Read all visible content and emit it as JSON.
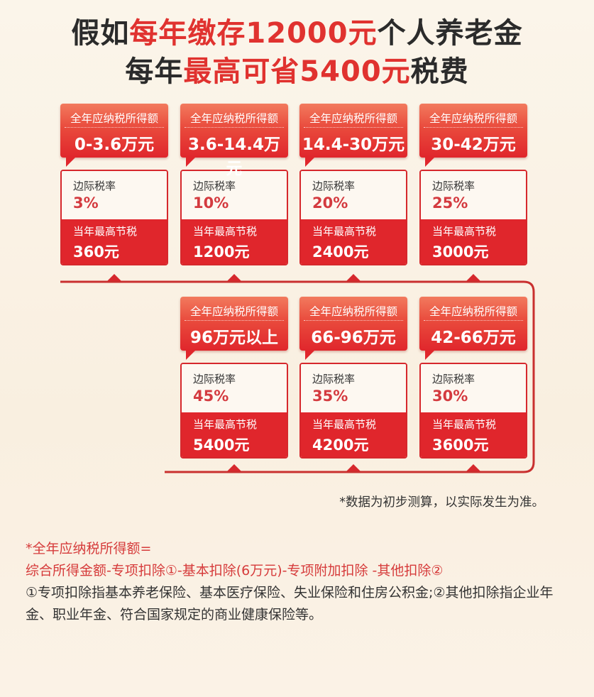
{
  "title": {
    "line1": [
      {
        "t": "假如",
        "hl": false
      },
      {
        "t": "每年缴存12000元",
        "hl": true
      },
      {
        "t": "个人养老金",
        "hl": false
      }
    ],
    "line2": [
      {
        "t": "每年",
        "hl": false
      },
      {
        "t": "最高可省5400元",
        "hl": true
      },
      {
        "t": "税费",
        "hl": false
      }
    ]
  },
  "labels": {
    "income": "全年应纳税所得额",
    "rate": "边际税率",
    "saving": "当年最高节税"
  },
  "brackets": [
    {
      "range": "0-3.6万元",
      "rate": "3%",
      "saving": "360元"
    },
    {
      "range": "3.6-14.4万元",
      "rate": "10%",
      "saving": "1200元"
    },
    {
      "range": "14.4-30万元",
      "rate": "20%",
      "saving": "2400元"
    },
    {
      "range": "30-42万元",
      "rate": "25%",
      "saving": "3000元"
    },
    {
      "range": "42-66万元",
      "rate": "30%",
      "saving": "3600元"
    },
    {
      "range": "66-96万元",
      "rate": "35%",
      "saving": "4200元"
    },
    {
      "range": "96万元以上",
      "rate": "45%",
      "saving": "5400元"
    }
  ],
  "note": "*数据为初步测算，以实际发生为准。",
  "footnote": {
    "formula_title": "*全年应纳税所得额=",
    "formula": "综合所得金额-专项扣除①-基本扣除(6万元)-专项附加扣除 -其他扣除②",
    "explanation": "①专项扣除指基本养老保险、基本医疗保险、失业保险和住房公积金;②其他扣除指企业年金、职业年金、符合国家规定的商业健康保险等。"
  },
  "colors": {
    "accent": "#e0262c",
    "text": "#2b2b2b",
    "background": "#fbf3e6"
  }
}
